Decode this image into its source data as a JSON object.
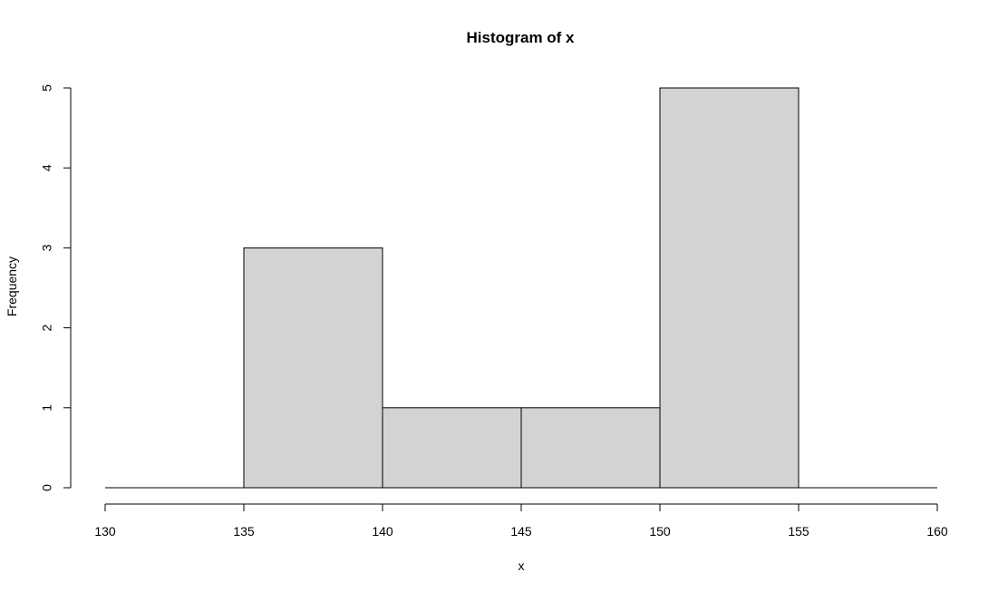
{
  "chart_data": {
    "type": "bar",
    "title": "Histogram of x",
    "xlabel": "x",
    "ylabel": "Frequency",
    "bins": [
      {
        "from": 130,
        "to": 135,
        "count": 0
      },
      {
        "from": 135,
        "to": 140,
        "count": 3
      },
      {
        "from": 140,
        "to": 145,
        "count": 1
      },
      {
        "from": 145,
        "to": 150,
        "count": 1
      },
      {
        "from": 150,
        "to": 155,
        "count": 5
      },
      {
        "from": 155,
        "to": 160,
        "count": 0
      }
    ],
    "xlim": [
      130,
      160
    ],
    "ylim": [
      0,
      5
    ],
    "x_ticks": [
      "130",
      "135",
      "140",
      "145",
      "150",
      "155",
      "160"
    ],
    "y_ticks": [
      "0",
      "1",
      "2",
      "3",
      "4",
      "5"
    ],
    "grid": false,
    "bar_fill": "#d3d3d3",
    "bar_stroke": "#000000"
  }
}
